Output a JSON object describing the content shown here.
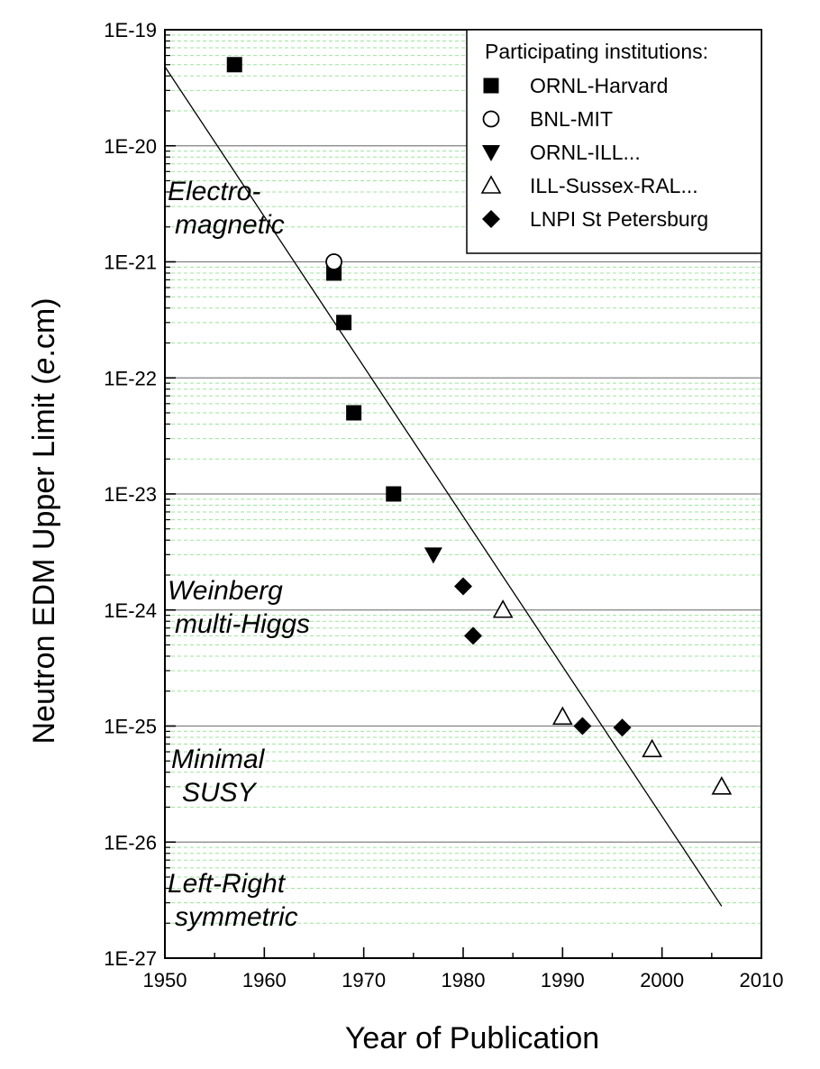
{
  "chart_data": {
    "type": "scatter",
    "title": "",
    "xlabel": "Year of Publication",
    "ylabel_prefix": "Neutron EDM Upper Limit (",
    "ylabel_italic": "e",
    "ylabel_suffix": ".cm)",
    "xlim": [
      1950,
      2010
    ],
    "ylim": [
      1e-27,
      1e-19
    ],
    "yscale": "log",
    "x_ticks": [
      1950,
      1960,
      1970,
      1980,
      1990,
      2000,
      2010
    ],
    "x_tick_labels": [
      "1950",
      "1960",
      "1970",
      "1980",
      "1990",
      "2000",
      "2010"
    ],
    "y_ticks": [
      1e-19,
      1e-20,
      1e-21,
      1e-22,
      1e-23,
      1e-24,
      1e-25,
      1e-26,
      1e-27
    ],
    "y_tick_labels": [
      "1E-19",
      "1E-20",
      "1E-21",
      "1E-22",
      "1E-23",
      "1E-24",
      "1E-25",
      "1E-26",
      "1E-27"
    ],
    "grid": {
      "major_y": true,
      "minor_y": true,
      "major_color": "#808080",
      "minor_color": "#9be59b"
    },
    "legend": {
      "title": "Participating institutions:",
      "placement": "top-right"
    },
    "series": [
      {
        "name": "ORNL-Harvard",
        "marker": "square-filled",
        "points": [
          [
            1957,
            5e-20
          ],
          [
            1967,
            8e-22
          ],
          [
            1968,
            3e-22
          ],
          [
            1969,
            5e-23
          ],
          [
            1973,
            1e-23
          ]
        ]
      },
      {
        "name": "BNL-MIT",
        "marker": "circle-open",
        "points": [
          [
            1967,
            1e-21
          ]
        ]
      },
      {
        "name": "ORNL-ILL...",
        "marker": "triangle-down-filled",
        "points": [
          [
            1977,
            3e-24
          ]
        ]
      },
      {
        "name": "ILL-Sussex-RAL...",
        "marker": "triangle-up-open",
        "points": [
          [
            1984,
            1e-24
          ],
          [
            1990,
            1.2e-25
          ],
          [
            1999,
            6.3e-26
          ],
          [
            2006,
            3e-26
          ]
        ]
      },
      {
        "name": "LNPI St Petersburg",
        "marker": "diamond-filled",
        "points": [
          [
            1980,
            1.6e-24
          ],
          [
            1981,
            6e-25
          ],
          [
            1992,
            1e-25
          ],
          [
            1996,
            9.7e-26
          ]
        ]
      }
    ],
    "trend_line": {
      "from": [
        1950,
        4.8e-20
      ],
      "to": [
        2006,
        2.8e-27
      ]
    },
    "annotations": [
      {
        "lines": [
          "Electro-",
          "magnetic"
        ]
      },
      {
        "lines": [
          "Weinberg",
          "multi-Higgs"
        ]
      },
      {
        "lines": [
          "Minimal",
          "SUSY"
        ]
      },
      {
        "lines": [
          "Left-Right",
          "symmetric"
        ]
      }
    ]
  }
}
